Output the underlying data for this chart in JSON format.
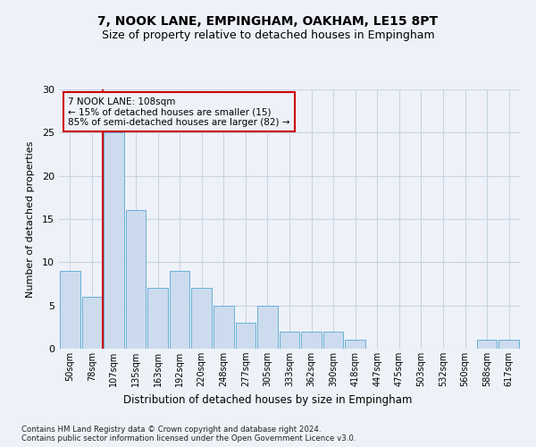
{
  "title1": "7, NOOK LANE, EMPINGHAM, OAKHAM, LE15 8PT",
  "title2": "Size of property relative to detached houses in Empingham",
  "xlabel": "Distribution of detached houses by size in Empingham",
  "ylabel": "Number of detached properties",
  "bin_labels": [
    "50sqm",
    "78sqm",
    "107sqm",
    "135sqm",
    "163sqm",
    "192sqm",
    "220sqm",
    "248sqm",
    "277sqm",
    "305sqm",
    "333sqm",
    "362sqm",
    "390sqm",
    "418sqm",
    "447sqm",
    "475sqm",
    "503sqm",
    "532sqm",
    "560sqm",
    "588sqm",
    "617sqm"
  ],
  "values": [
    9,
    6,
    25,
    16,
    7,
    9,
    7,
    5,
    3,
    5,
    2,
    2,
    2,
    1,
    0,
    0,
    0,
    0,
    0,
    1,
    1
  ],
  "bar_color": "#ccdcee",
  "bar_edge_color": "#6aaed6",
  "grid_color": "#c8d4e4",
  "vline_color": "#cc0000",
  "vline_index": 2,
  "annotation_text_line1": "7 NOOK LANE: 108sqm",
  "annotation_text_line2": "← 15% of detached houses are smaller (15)",
  "annotation_text_line3": "85% of semi-detached houses are larger (82) →",
  "annotation_box_edge_color": "#cc0000",
  "footnote": "Contains HM Land Registry data © Crown copyright and database right 2024.\nContains public sector information licensed under the Open Government Licence v3.0.",
  "ylim": [
    0,
    30
  ],
  "yticks": [
    0,
    5,
    10,
    15,
    20,
    25,
    30
  ],
  "background_color": "#eef2f8",
  "title1_fontsize": 10,
  "title2_fontsize": 9
}
